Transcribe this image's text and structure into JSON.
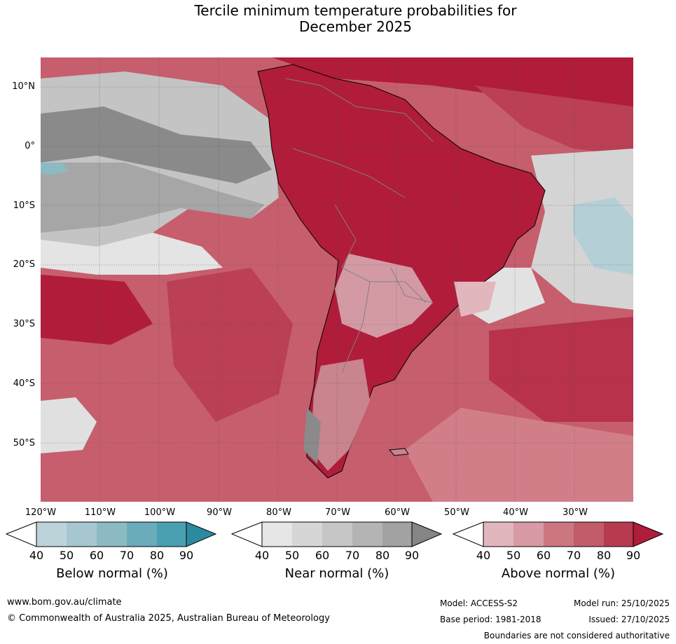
{
  "title_line1": "Tercile minimum temperature probabilities for",
  "title_line2": "December 2025",
  "map": {
    "lat_labels": [
      "10°N",
      "0°",
      "10°S",
      "20°S",
      "30°S",
      "40°S",
      "50°S"
    ],
    "lon_labels": [
      "120°W",
      "110°W",
      "100°W",
      "90°W",
      "80°W",
      "70°W",
      "60°W",
      "50°W",
      "40°W",
      "30°W"
    ]
  },
  "colorbars": [
    {
      "title": "Below normal (%)",
      "ticks": [
        "40",
        "50",
        "60",
        "70",
        "80",
        "90"
      ],
      "colors": [
        "#ffffff",
        "#bcd3d9",
        "#a6c7cf",
        "#8cbac3",
        "#6aacba",
        "#4aa0b2",
        "#2c8aa0"
      ]
    },
    {
      "title": "Near normal (%)",
      "ticks": [
        "40",
        "50",
        "60",
        "70",
        "80",
        "90"
      ],
      "colors": [
        "#ffffff",
        "#e6e6e6",
        "#d6d6d6",
        "#c6c6c6",
        "#b4b4b4",
        "#a2a2a2",
        "#858585"
      ]
    },
    {
      "title": "Above normal (%)",
      "ticks": [
        "40",
        "50",
        "60",
        "70",
        "80",
        "90"
      ],
      "colors": [
        "#ffffff",
        "#e2b6bd",
        "#d89aa4",
        "#cc7682",
        "#c25c6a",
        "#b83a4f",
        "#b01c3a"
      ]
    }
  ],
  "footer": {
    "url": "www.bom.gov.au/climate",
    "copyright": "© Commonwealth of Australia 2025, Australian Bureau of Meteorology",
    "model": "Model: ACCESS-S2",
    "model_run": "Model run: 25/10/2025",
    "base_period": "Base period: 1981-2018",
    "issued": "Issued: 27/10/2025",
    "disclaimer": "Boundaries are not considered authoritative"
  }
}
